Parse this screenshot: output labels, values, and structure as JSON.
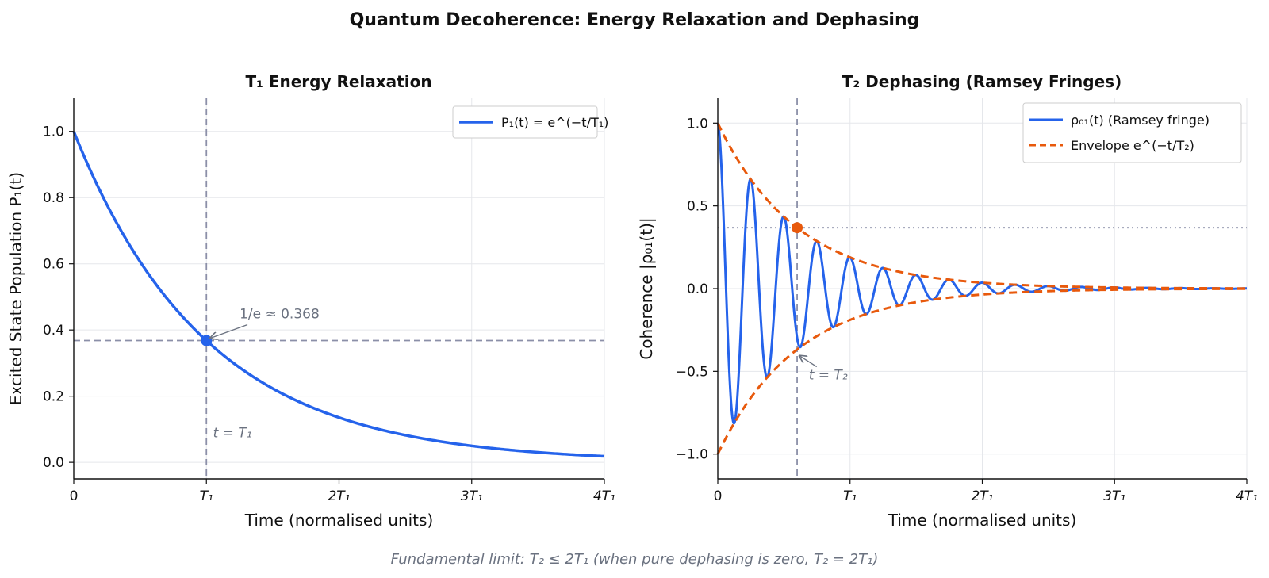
{
  "figure": {
    "title": "Quantum Decoherence: Energy Relaxation and Dephasing",
    "footnote": "Fundamental limit: T₂ ≤ 2T₁   (when pure dephasing is zero, T₂ = 2T₁)"
  },
  "colors": {
    "blue": "#2563eb",
    "orange": "#e8590c",
    "grid": "#e5e7eb",
    "ref_line": "#8b8fa8",
    "annotation": "#6b7280"
  },
  "chart_data": [
    {
      "type": "line",
      "panel": "left",
      "title": "T₁  Energy Relaxation",
      "xlabel": "Time  (normalised units)",
      "ylabel": "Excited State Population  P₁(t)",
      "xlim": [
        0,
        4
      ],
      "ylim": [
        -0.05,
        1.1
      ],
      "x_ticks": [
        {
          "value": 0,
          "label": "0"
        },
        {
          "value": 1,
          "label": "T₁"
        },
        {
          "value": 2,
          "label": "2T₁"
        },
        {
          "value": 3,
          "label": "3T₁"
        },
        {
          "value": 4,
          "label": "4T₁"
        }
      ],
      "y_ticks": [
        {
          "value": 0.0,
          "label": "0.0"
        },
        {
          "value": 0.2,
          "label": "0.2"
        },
        {
          "value": 0.4,
          "label": "0.4"
        },
        {
          "value": 0.6,
          "label": "0.6"
        },
        {
          "value": 0.8,
          "label": "0.8"
        },
        {
          "value": 1.0,
          "label": "1.0"
        }
      ],
      "grid": true,
      "legend_position": "top-right",
      "series": [
        {
          "name": "P₁(t) = e^(−t/T₁)",
          "function": "exp(-t)",
          "color": "#2563eb"
        }
      ],
      "reference_lines": [
        {
          "orientation": "vertical",
          "value": 1,
          "style": "dashed"
        },
        {
          "orientation": "horizontal",
          "value": 0.368,
          "style": "dashed"
        }
      ],
      "marker": {
        "x": 1,
        "y": 0.368
      },
      "annotations": [
        {
          "text": "1/e ≈ 0.368",
          "x": 1.25,
          "y": 0.44
        },
        {
          "text": "t = T₁",
          "x": 1.05,
          "y": 0.08
        }
      ]
    },
    {
      "type": "line",
      "panel": "right",
      "title": "T₂  Dephasing  (Ramsey Fringes)",
      "xlabel": "Time  (normalised units)",
      "ylabel": "Coherence  |ρ₀₁(t)|",
      "xlim": [
        0,
        4
      ],
      "ylim": [
        -1.15,
        1.15
      ],
      "x_ticks": [
        {
          "value": 0,
          "label": "0"
        },
        {
          "value": 1,
          "label": "T₁"
        },
        {
          "value": 2,
          "label": "2T₁"
        },
        {
          "value": 3,
          "label": "3T₁"
        },
        {
          "value": 4,
          "label": "4T₁"
        }
      ],
      "y_ticks": [
        {
          "value": -1.0,
          "label": "−1.0"
        },
        {
          "value": -0.5,
          "label": "−0.5"
        },
        {
          "value": 0.0,
          "label": "0.0"
        },
        {
          "value": 0.5,
          "label": "0.5"
        },
        {
          "value": 1.0,
          "label": "1.0"
        }
      ],
      "grid": true,
      "legend_position": "top-right",
      "t2": 0.6,
      "fringe_period": 0.25,
      "series": [
        {
          "name": "ρ₀₁(t) (Ramsey fringe)",
          "function": "exp(-t/T2)·cos(2πt/0.25)",
          "color": "#2563eb",
          "style": "solid"
        },
        {
          "name": "Envelope e^(−t/T₂)",
          "function": "±exp(-t/T2)",
          "color": "#e8590c",
          "style": "dashed"
        }
      ],
      "reference_lines": [
        {
          "orientation": "vertical",
          "value": 0.6,
          "style": "dashed"
        },
        {
          "orientation": "horizontal",
          "value": 0.368,
          "style": "dotted"
        }
      ],
      "marker": {
        "x": 0.6,
        "y": 0.368
      },
      "annotations": [
        {
          "text": "t = T₂",
          "x": 0.7,
          "y": -0.52
        }
      ]
    }
  ]
}
